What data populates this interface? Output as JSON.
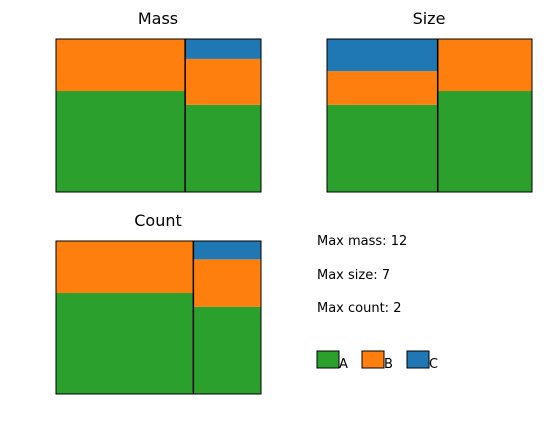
{
  "chart_data": [
    {
      "type": "mosaic",
      "title": "Mass",
      "columns": [
        {
          "width": 0.63,
          "segments": [
            {
              "category": "A",
              "value": 0.66
            },
            {
              "category": "B",
              "value": 0.34
            }
          ]
        },
        {
          "width": 0.37,
          "segments": [
            {
              "category": "A",
              "value": 0.57
            },
            {
              "category": "B",
              "value": 0.3
            },
            {
              "category": "C",
              "value": 0.13
            }
          ]
        }
      ]
    },
    {
      "type": "mosaic",
      "title": "Size",
      "columns": [
        {
          "width": 0.54,
          "segments": [
            {
              "category": "A",
              "value": 0.57
            },
            {
              "category": "B",
              "value": 0.22
            },
            {
              "category": "C",
              "value": 0.21
            }
          ]
        },
        {
          "width": 0.46,
          "segments": [
            {
              "category": "A",
              "value": 0.66
            },
            {
              "category": "B",
              "value": 0.34
            }
          ]
        }
      ]
    },
    {
      "type": "mosaic",
      "title": "Count",
      "columns": [
        {
          "width": 0.67,
          "segments": [
            {
              "category": "A",
              "value": 0.66
            },
            {
              "category": "B",
              "value": 0.34
            }
          ]
        },
        {
          "width": 0.33,
          "segments": [
            {
              "category": "A",
              "value": 0.57
            },
            {
              "category": "B",
              "value": 0.31
            },
            {
              "category": "C",
              "value": 0.12
            }
          ]
        }
      ]
    }
  ],
  "stats": {
    "max_mass": "Max mass: 12",
    "max_size": "Max size: 7",
    "max_count": "Max count: 2"
  },
  "legend": [
    {
      "label": "A",
      "color": "#2ca02c"
    },
    {
      "label": "B",
      "color": "#ff7f0e"
    },
    {
      "label": "C",
      "color": "#1f77b4"
    }
  ]
}
